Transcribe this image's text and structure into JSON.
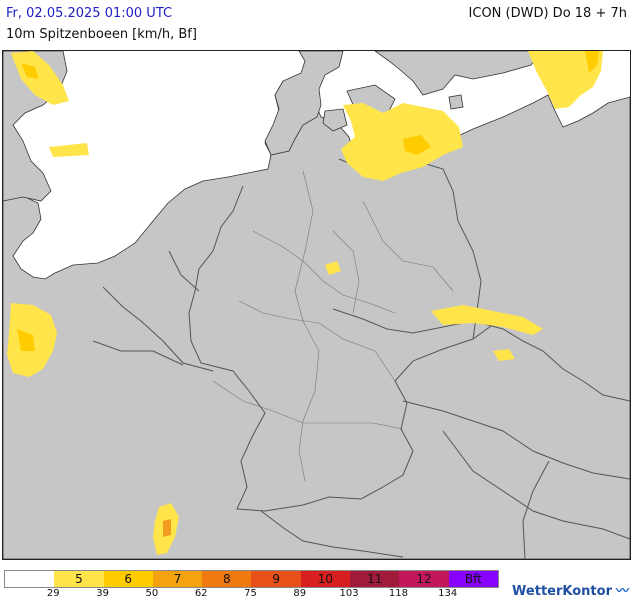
{
  "header": {
    "date": "Fr, 02.05.2025 01:00 UTC",
    "model": "ICON (DWD) Do 18 + 7h",
    "parameter": "10m Spitzenboeen [km/h, Bf]"
  },
  "colors": {
    "land": "#c6c6c6",
    "sea": "#ffffff",
    "border": "#555555",
    "coast": "#333333",
    "gust_5": "#ffe54a",
    "gust_6": "#ffcc00",
    "gust_7": "#f29c1f"
  },
  "legend": {
    "cells": [
      {
        "label": "",
        "color": "#ffffff"
      },
      {
        "label": "5",
        "color": "#ffe54a"
      },
      {
        "label": "6",
        "color": "#ffcc00"
      },
      {
        "label": "7",
        "color": "#f5a20f"
      },
      {
        "label": "8",
        "color": "#f07a10"
      },
      {
        "label": "9",
        "color": "#e8501a"
      },
      {
        "label": "10",
        "color": "#d81e1e"
      },
      {
        "label": "11",
        "color": "#a01a3a"
      },
      {
        "label": "12",
        "color": "#c2185b"
      },
      {
        "label": "Bft",
        "color": "#8a00ff"
      }
    ],
    "ticks": [
      "29",
      "39",
      "50",
      "62",
      "75",
      "89",
      "103",
      "118",
      "134"
    ]
  },
  "brand": {
    "name": "WetterKontor",
    "icon": "wave-icon"
  }
}
